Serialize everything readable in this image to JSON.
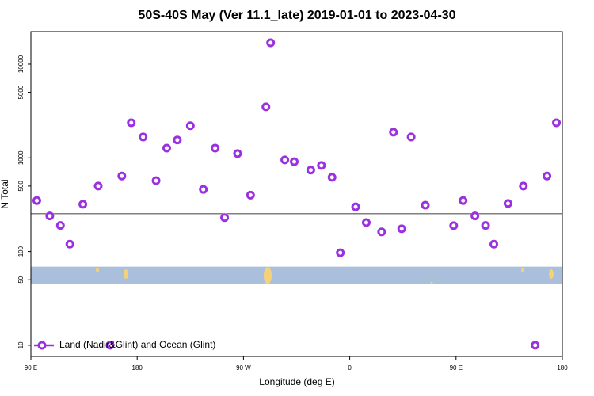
{
  "chart_data": {
    "type": "scatter",
    "title": "50S-40S May (Ver 11.1_late)   2019-01-01 to 2023-04-30",
    "x_label": "Longitude (deg E)",
    "y_label": "N Total",
    "log_y": true,
    "xlim": [
      90,
      540
    ],
    "xticks": [
      {
        "value": 90,
        "label": "90 E"
      },
      180,
      {
        "value": 270,
        "label": "90 W"
      },
      {
        "value": 360,
        "label": "0"
      },
      {
        "value": 450,
        "label": "90 E"
      },
      {
        "value": 540,
        "label": "180"
      }
    ],
    "ylim": [
      7.6,
      22200
    ],
    "yticks": [
      10,
      50,
      100,
      500,
      1000,
      5000,
      10000
    ],
    "hline": 253,
    "band": [
      45,
      69
    ],
    "band_color": "#a9bfdc",
    "series": [
      {
        "name": "Land (Nadir&Glint) and Ocean (Glint)",
        "color": "#9b30e0",
        "x": [
          95,
          106,
          115,
          123,
          134,
          147,
          157,
          167,
          175,
          185,
          196,
          205,
          214,
          225,
          236,
          246,
          254,
          265,
          276,
          289,
          293,
          305,
          313,
          327,
          336,
          345,
          352,
          365,
          374,
          387,
          397,
          404,
          412,
          424,
          448,
          456,
          466,
          475,
          482,
          494,
          507,
          517,
          527,
          535
        ],
        "values": [
          350,
          240,
          190,
          120,
          320,
          500,
          10,
          640,
          2370,
          1670,
          570,
          1270,
          1550,
          2200,
          460,
          1270,
          230,
          1110,
          400,
          3500,
          16900,
          950,
          910,
          740,
          830,
          620,
          97,
          300,
          204,
          162,
          1880,
          175,
          1670,
          313,
          189,
          350,
          240,
          190,
          120,
          326,
          500,
          10,
          640,
          2370
        ]
      }
    ]
  }
}
